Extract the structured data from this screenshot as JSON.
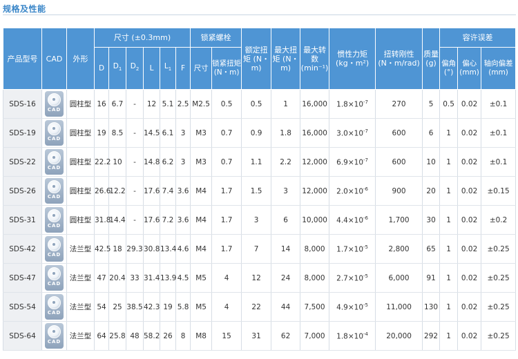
{
  "title": "规格及性能",
  "colors": {
    "header_bg": "#4f95d4",
    "title": "#3a86c8",
    "model_bg": "#eef0f3"
  },
  "headers": {
    "model": "产品型号",
    "cad": "CAD",
    "shape": "外形",
    "dim_group": "尺寸 (±0.3mm)",
    "screw_group": "锁紧螺栓",
    "rated": "额定扭矩 (N・m)",
    "max_torque": "最大扭矩 (N・m)",
    "max_speed": "最大转数 (min⁻¹)",
    "inertia": "惯性力矩 (kg・m²)",
    "stiffness": "扭转刚性 (N・m/rad)",
    "mass": "质量 (g)",
    "tol_group": "容许误差",
    "dims": [
      "D",
      "D1",
      "D2",
      "L",
      "L1",
      "F"
    ],
    "screw_size": "尺寸",
    "screw_torque": "锁紧扭矩 (N・m)",
    "tol_angle": "偏角 (°)",
    "tol_offset": "偏心 (mm)",
    "tol_axial": "轴向偏差 (mm)"
  },
  "cad_icon": {
    "icon": "cad-download-icon",
    "label": "CAD"
  },
  "rows": [
    {
      "model": "SDS-16",
      "shape": "圆柱型",
      "D": "16",
      "D1": "6.7",
      "D2": "-",
      "L": "12",
      "L1": "5.1",
      "F": "2.5",
      "screw": "M2.5",
      "screw_torque": "0.5",
      "rated": "0.5",
      "max_torque": "1",
      "max_speed": "16,000",
      "inertia_m": "1.8",
      "inertia_e": "-7",
      "stiffness": "270",
      "mass": "5",
      "angle": "0.5",
      "offset": "0.02",
      "axial": "±0.1"
    },
    {
      "model": "SDS-19",
      "shape": "圆柱型",
      "D": "19",
      "D1": "8.5",
      "D2": "-",
      "L": "14.5",
      "L1": "6.1",
      "F": "3",
      "screw": "M3",
      "screw_torque": "0.7",
      "rated": "0.9",
      "max_torque": "1.8",
      "max_speed": "16,000",
      "inertia_m": "3.0",
      "inertia_e": "-7",
      "stiffness": "600",
      "mass": "6",
      "angle": "1",
      "offset": "0.02",
      "axial": "±0.1"
    },
    {
      "model": "SDS-22",
      "shape": "圆柱型",
      "D": "22.2",
      "D1": "10",
      "D2": "-",
      "L": "14.8",
      "L1": "6.2",
      "F": "3",
      "screw": "M3",
      "screw_torque": "0.7",
      "rated": "1.1",
      "max_torque": "2.2",
      "max_speed": "12,000",
      "inertia_m": "6.9",
      "inertia_e": "-7",
      "stiffness": "600",
      "mass": "10",
      "angle": "1",
      "offset": "0.02",
      "axial": "±0.1"
    },
    {
      "model": "SDS-26",
      "shape": "圆柱型",
      "D": "26.6",
      "D1": "12.2",
      "D2": "-",
      "L": "17.6",
      "L1": "7.4",
      "F": "3.6",
      "screw": "M4",
      "screw_torque": "1.7",
      "rated": "1.5",
      "max_torque": "3",
      "max_speed": "12,000",
      "inertia_m": "2.0",
      "inertia_e": "-6",
      "stiffness": "900",
      "mass": "20",
      "angle": "1",
      "offset": "0.02",
      "axial": "±0.15"
    },
    {
      "model": "SDS-31",
      "shape": "圆柱型",
      "D": "31.8",
      "D1": "14.4",
      "D2": "-",
      "L": "17.6",
      "L1": "7.2",
      "F": "3.6",
      "screw": "M4",
      "screw_torque": "1.7",
      "rated": "3",
      "max_torque": "6",
      "max_speed": "10,000",
      "inertia_m": "4.4",
      "inertia_e": "-6",
      "stiffness": "1,700",
      "mass": "30",
      "angle": "1",
      "offset": "0.02",
      "axial": "±0.2"
    },
    {
      "model": "SDS-42",
      "shape": "法兰型",
      "D": "42.5",
      "D1": "18",
      "D2": "29.3",
      "L": "30.8",
      "L1": "13.4",
      "F": "4.6",
      "screw": "M4",
      "screw_torque": "1.7",
      "rated": "7",
      "max_torque": "14",
      "max_speed": "8,000",
      "inertia_m": "1.7",
      "inertia_e": "-5",
      "stiffness": "2,800",
      "mass": "65",
      "angle": "1",
      "offset": "0.02",
      "axial": "±0.25"
    },
    {
      "model": "SDS-47",
      "shape": "法兰型",
      "D": "47",
      "D1": "20.4",
      "D2": "33",
      "L": "31.4",
      "L1": "13.9",
      "F": "4.5",
      "screw": "M5",
      "screw_torque": "4",
      "rated": "12",
      "max_torque": "24",
      "max_speed": "8,000",
      "inertia_m": "2.7",
      "inertia_e": "-5",
      "stiffness": "6,000",
      "mass": "91",
      "angle": "1",
      "offset": "0.02",
      "axial": "±0.25"
    },
    {
      "model": "SDS-54",
      "shape": "法兰型",
      "D": "54",
      "D1": "25",
      "D2": "38.5",
      "L": "42.3",
      "L1": "19",
      "F": "5.8",
      "screw": "M5",
      "screw_torque": "4",
      "rated": "22",
      "max_torque": "44",
      "max_speed": "7,500",
      "inertia_m": "4.9",
      "inertia_e": "-5",
      "stiffness": "11,000",
      "mass": "130",
      "angle": "1",
      "offset": "0.02",
      "axial": "±0.25"
    },
    {
      "model": "SDS-64",
      "shape": "法兰型",
      "D": "64",
      "D1": "25.8",
      "D2": "48",
      "L": "58.2",
      "L1": "26",
      "F": "8",
      "screw": "M8",
      "screw_torque": "15",
      "rated": "31",
      "max_torque": "62",
      "max_speed": "7,000",
      "inertia_m": "1.8",
      "inertia_e": "-4",
      "stiffness": "20,000",
      "mass": "292",
      "angle": "1",
      "offset": "0.02",
      "axial": "±0.25"
    }
  ]
}
